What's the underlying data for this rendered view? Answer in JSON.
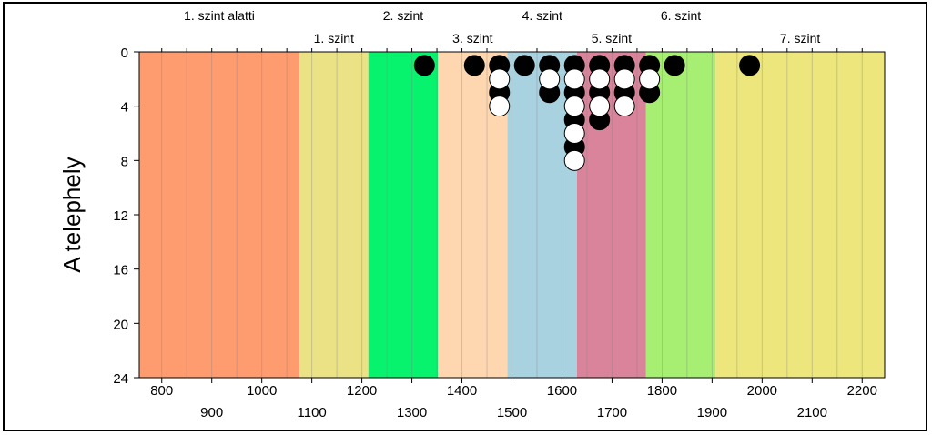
{
  "chart_data": {
    "type": "scatter",
    "title": "",
    "xlabel": "",
    "ylabel": "A telephely",
    "xlim": [
      755,
      2245
    ],
    "ylim": [
      24,
      0
    ],
    "y_ticks": [
      0,
      4,
      8,
      12,
      16,
      20,
      24
    ],
    "x_ticks_upper": [
      800,
      1000,
      1200,
      1400,
      1600,
      1800,
      2000,
      2200
    ],
    "x_ticks_lower": [
      900,
      1100,
      1300,
      1500,
      1700,
      1900,
      2100
    ],
    "x_ticks_top_row": [
      1400,
      1600,
      1800,
      2000,
      2200
    ],
    "x_ticks_bottom_row": [
      900,
      1100,
      1300,
      1500,
      1700,
      1900,
      2100
    ],
    "x_ticks_mid_row": [
      800,
      1000,
      1200
    ],
    "grid": {
      "vertical_interval": 50,
      "horizontal": false
    },
    "bands": [
      {
        "name": "1. szint alatti",
        "from": 755,
        "to": 1075,
        "color": "#fe9c70"
      },
      {
        "name": "1. szint",
        "from": 1075,
        "to": 1213,
        "color": "#eae285"
      },
      {
        "name": "2. szint",
        "from": 1213,
        "to": 1352,
        "color": "#07f36d"
      },
      {
        "name": "3. szint",
        "from": 1352,
        "to": 1491,
        "color": "#fed7b0"
      },
      {
        "name": "4. szint",
        "from": 1491,
        "to": 1630,
        "color": "#a9d2e0"
      },
      {
        "name": "5. szint",
        "from": 1630,
        "to": 1768,
        "color": "#d9849a"
      },
      {
        "name": "6. szint",
        "from": 1768,
        "to": 1907,
        "color": "#a7ef72"
      },
      {
        "name": "7. szint",
        "from": 1907,
        "to": 2245,
        "color": "#ece67c"
      }
    ],
    "level_labels_top_row": [
      "1. szint alatti",
      "2. szint",
      "4. szint",
      "6. szint"
    ],
    "level_labels_bottom_row": [
      "1. szint",
      "3. szint",
      "5. szint",
      "7. szint"
    ],
    "series": [
      {
        "fill": "#000000",
        "points": [
          {
            "x": 1325,
            "y": 1
          },
          {
            "x": 1425,
            "y": 1
          },
          {
            "x": 1475,
            "y": 1
          },
          {
            "x": 1475,
            "y": 3
          },
          {
            "x": 1525,
            "y": 1
          },
          {
            "x": 1575,
            "y": 1
          },
          {
            "x": 1575,
            "y": 3
          },
          {
            "x": 1625,
            "y": 1
          },
          {
            "x": 1625,
            "y": 3
          },
          {
            "x": 1625,
            "y": 5
          },
          {
            "x": 1625,
            "y": 7
          },
          {
            "x": 1675,
            "y": 1
          },
          {
            "x": 1675,
            "y": 3
          },
          {
            "x": 1675,
            "y": 5
          },
          {
            "x": 1725,
            "y": 1
          },
          {
            "x": 1725,
            "y": 3
          },
          {
            "x": 1775,
            "y": 1
          },
          {
            "x": 1775,
            "y": 3
          },
          {
            "x": 1825,
            "y": 1
          },
          {
            "x": 1975,
            "y": 1
          }
        ]
      },
      {
        "fill": "#ffffff",
        "points": [
          {
            "x": 1475,
            "y": 2
          },
          {
            "x": 1475,
            "y": 4
          },
          {
            "x": 1575,
            "y": 2
          },
          {
            "x": 1625,
            "y": 2
          },
          {
            "x": 1625,
            "y": 4
          },
          {
            "x": 1625,
            "y": 6
          },
          {
            "x": 1625,
            "y": 8
          },
          {
            "x": 1675,
            "y": 2
          },
          {
            "x": 1675,
            "y": 4
          },
          {
            "x": 1725,
            "y": 2
          },
          {
            "x": 1725,
            "y": 4
          },
          {
            "x": 1775,
            "y": 2
          }
        ]
      }
    ]
  }
}
